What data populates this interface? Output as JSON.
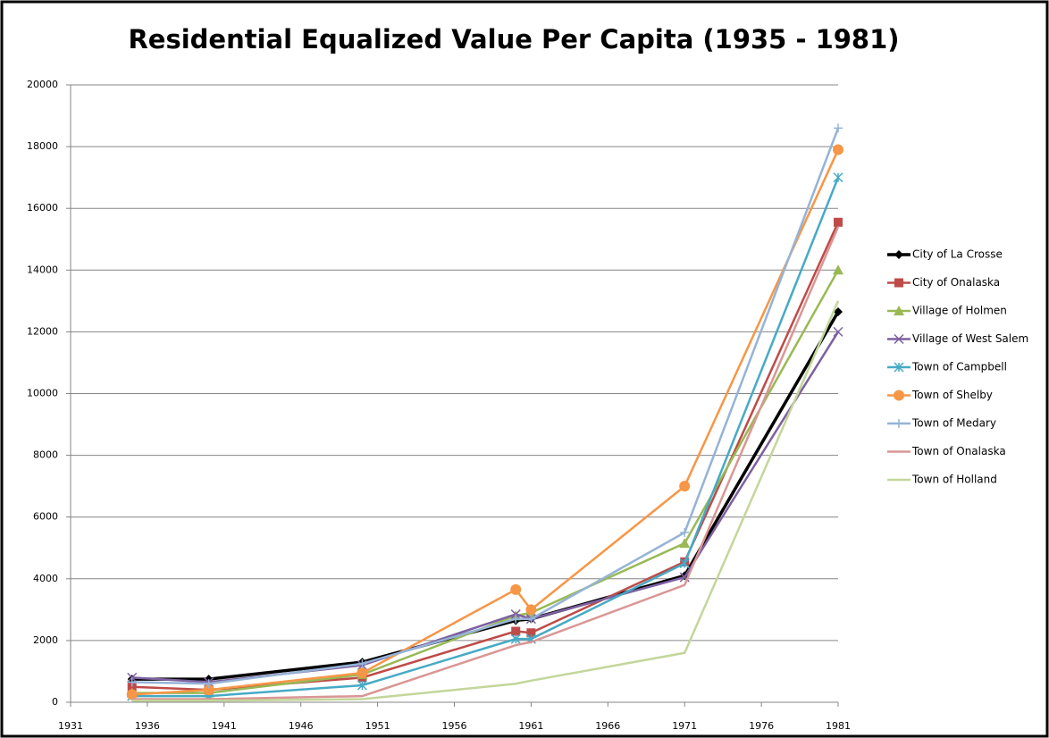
{
  "chart_data": {
    "type": "line",
    "title": "Residential Equalized Value Per Capita (1935 - 1981)",
    "x": [
      1935,
      1940,
      1950,
      1960,
      1961,
      1971,
      1981
    ],
    "xlim": [
      1931,
      1981
    ],
    "xticks": [
      1931,
      1936,
      1941,
      1946,
      1951,
      1956,
      1961,
      1966,
      1971,
      1976,
      1981
    ],
    "ylim": [
      0,
      20000
    ],
    "yticks": [
      0,
      2000,
      4000,
      6000,
      8000,
      10000,
      12000,
      14000,
      16000,
      18000,
      20000
    ],
    "grid": true,
    "legend": "right",
    "series": [
      {
        "name": "City of La Crosse",
        "color": "#000000",
        "marker": "diamond",
        "values": [
          750,
          750,
          1300,
          2650,
          2700,
          4100,
          12650
        ]
      },
      {
        "name": "City of Onalaska",
        "color": "#be4b48",
        "marker": "square",
        "values": [
          500,
          400,
          800,
          2300,
          2250,
          4550,
          15550
        ]
      },
      {
        "name": "Village of Holmen",
        "color": "#98b954",
        "marker": "triangle",
        "values": [
          300,
          300,
          900,
          2800,
          2900,
          5150,
          14000
        ]
      },
      {
        "name": "Village of West Salem",
        "color": "#7d60a0",
        "marker": "x",
        "values": [
          800,
          650,
          1200,
          2850,
          2700,
          4050,
          12000
        ]
      },
      {
        "name": "Town of Campbell",
        "color": "#46aac5",
        "marker": "star",
        "values": [
          200,
          200,
          550,
          2050,
          2050,
          4500,
          17000
        ]
      },
      {
        "name": "Town of Shelby",
        "color": "#f79646",
        "marker": "circle",
        "values": [
          250,
          400,
          950,
          3650,
          3000,
          7000,
          17900
        ]
      },
      {
        "name": "Town of Medary",
        "color": "#95b3d7",
        "marker": "plus",
        "values": [
          650,
          600,
          1250,
          2700,
          2700,
          5500,
          18600
        ]
      },
      {
        "name": "Town of Onalaska",
        "color": "#d99694",
        "marker": "none",
        "values": [
          100,
          100,
          200,
          1850,
          1950,
          3800,
          15400
        ]
      },
      {
        "name": "Town of Holland",
        "color": "#c3d69b",
        "marker": "none",
        "values": [
          50,
          50,
          100,
          600,
          700,
          1600,
          13000
        ]
      }
    ]
  }
}
